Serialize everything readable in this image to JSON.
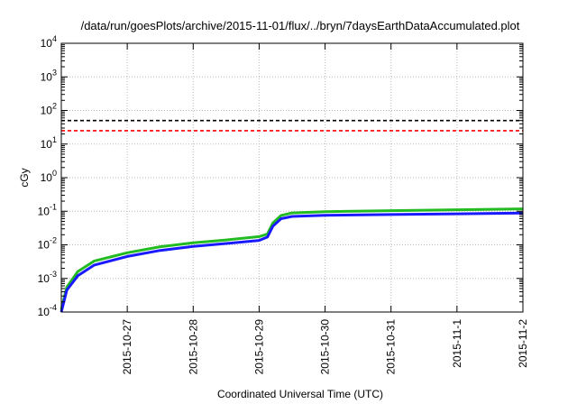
{
  "chart_data": {
    "type": "line",
    "title": "/data/run/goesPlots/archive/2015-11-01/flux/../bryn/7daysEarthDataAccumulated.plot",
    "xlabel": "Coordinated Universal Time (UTC)",
    "ylabel": "cGy",
    "y_scale": "log",
    "ylim": [
      0.0001,
      10000
    ],
    "xlim": [
      "2015-10-26T00:00",
      "2015-11-02T00:00"
    ],
    "x_ticks": [
      "2015-10-27",
      "2015-10-28",
      "2015-10-29",
      "2015-10-30",
      "2015-10-31",
      "2015-11-1",
      "2015-11-2"
    ],
    "y_ticks": [
      {
        "value": 0.0001,
        "base": "10",
        "exp": "-4"
      },
      {
        "value": 0.001,
        "base": "10",
        "exp": "-3"
      },
      {
        "value": 0.01,
        "base": "10",
        "exp": "-2"
      },
      {
        "value": 0.1,
        "base": "10",
        "exp": "-1"
      },
      {
        "value": 1,
        "base": "10",
        "exp": "0"
      },
      {
        "value": 10,
        "base": "10",
        "exp": "1"
      },
      {
        "value": 100,
        "base": "10",
        "exp": "2"
      },
      {
        "value": 1000,
        "base": "10",
        "exp": "3"
      },
      {
        "value": 10000,
        "base": "10",
        "exp": "4"
      }
    ],
    "grid": true,
    "reference_lines": [
      {
        "y": 50,
        "color": "#000000",
        "style": "dashed"
      },
      {
        "y": 25,
        "color": "#ff0000",
        "style": "dashed"
      }
    ],
    "series": [
      {
        "color": "#22bb22",
        "x": [
          "2015-10-26T00:00",
          "2015-10-26T02:00",
          "2015-10-26T06:00",
          "2015-10-26T12:00",
          "2015-10-27T00:00",
          "2015-10-27T12:00",
          "2015-10-28T00:00",
          "2015-10-28T12:00",
          "2015-10-29T00:00",
          "2015-10-29T03:00",
          "2015-10-29T05:00",
          "2015-10-29T08:00",
          "2015-10-29T12:00",
          "2015-10-30T00:00",
          "2015-10-31T00:00",
          "2015-11-01T00:00",
          "2015-11-02T00:00"
        ],
        "y": [
          0.00012,
          0.00055,
          0.0016,
          0.0033,
          0.0058,
          0.0088,
          0.0115,
          0.014,
          0.0175,
          0.021,
          0.045,
          0.075,
          0.089,
          0.097,
          0.104,
          0.111,
          0.118
        ]
      },
      {
        "color": "#1a1aff",
        "x": [
          "2015-10-26T00:00",
          "2015-10-26T02:00",
          "2015-10-26T06:00",
          "2015-10-26T12:00",
          "2015-10-27T00:00",
          "2015-10-27T12:00",
          "2015-10-28T00:00",
          "2015-10-28T12:00",
          "2015-10-29T00:00",
          "2015-10-29T03:00",
          "2015-10-29T05:00",
          "2015-10-29T08:00",
          "2015-10-29T12:00",
          "2015-10-30T00:00",
          "2015-10-31T00:00",
          "2015-11-01T00:00",
          "2015-11-02T00:00"
        ],
        "y": [
          0.0001,
          0.00045,
          0.0012,
          0.0025,
          0.0045,
          0.0068,
          0.009,
          0.011,
          0.0135,
          0.017,
          0.036,
          0.06,
          0.07,
          0.076,
          0.08,
          0.084,
          0.088
        ]
      }
    ]
  }
}
